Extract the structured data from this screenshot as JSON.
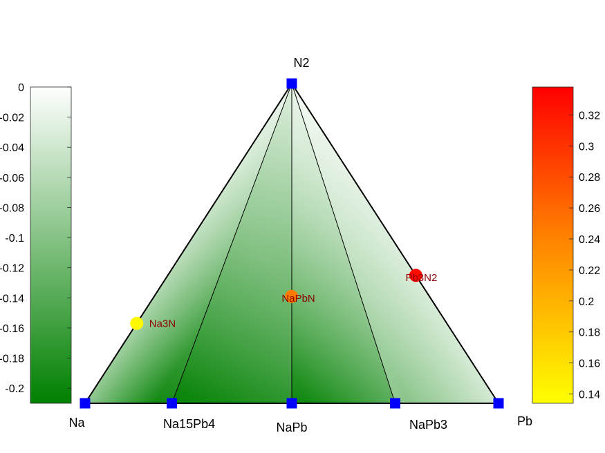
{
  "chart_data": {
    "type": "scatter",
    "title": "",
    "vertices": [
      "N2",
      "Na",
      "Pb"
    ],
    "hull_points": [
      {
        "label": "N2",
        "a": 0,
        "b": 0,
        "c": 1,
        "energy": 0
      },
      {
        "label": "Na",
        "a": 1,
        "b": 0,
        "c": 0,
        "energy": 0
      },
      {
        "label": "Na15Pb4",
        "a": 0.79,
        "b": 0.21,
        "c": 0,
        "energy": -0.2
      },
      {
        "label": "NaPb",
        "a": 0.5,
        "b": 0.5,
        "c": 0,
        "energy": -0.2
      },
      {
        "label": "NaPb3",
        "a": 0.25,
        "b": 0.75,
        "c": 0,
        "energy": -0.1
      },
      {
        "label": "Pb",
        "a": 0,
        "b": 1,
        "c": 0,
        "energy": 0
      }
    ],
    "unstable_points": [
      {
        "label": "Na3N",
        "a": 0.75,
        "b": 0,
        "c": 0.25,
        "energy_above_hull": 0.14
      },
      {
        "label": "NaPbN",
        "a": 0.333,
        "b": 0.333,
        "c": 0.333,
        "energy_above_hull": 0.24
      },
      {
        "label": "Pb3N2",
        "a": 0,
        "b": 0.6,
        "c": 0.4,
        "energy_above_hull": 0.33
      }
    ],
    "left_colorbar": {
      "range": [
        -0.21,
        0
      ],
      "ticks": [
        0,
        -0.02,
        -0.04,
        -0.06,
        -0.08,
        -0.1,
        -0.12,
        -0.14,
        -0.16,
        -0.18,
        -0.2
      ],
      "tick_labels": [
        "0",
        "-0.02",
        "-0.04",
        "-0.06",
        "-0.08",
        "-0.1",
        "-0.12",
        "-0.14",
        "-0.16",
        "-0.18",
        "-0.2"
      ],
      "color_top": "#ffffff",
      "color_bottom": "#008000"
    },
    "right_colorbar": {
      "range": [
        0.134,
        0.338
      ],
      "ticks": [
        0.14,
        0.16,
        0.18,
        0.2,
        0.22,
        0.24,
        0.26,
        0.28,
        0.3,
        0.32
      ],
      "tick_labels": [
        "0.14",
        "0.16",
        "0.18",
        "0.2",
        "0.22",
        "0.24",
        "0.26",
        "0.28",
        "0.3",
        "0.32"
      ],
      "color_low": "#ffff00",
      "color_high": "#ff0000"
    },
    "colors": {
      "hull_marker": "#0000ff",
      "annotation": "#8b0000",
      "edge": "#000000"
    }
  }
}
